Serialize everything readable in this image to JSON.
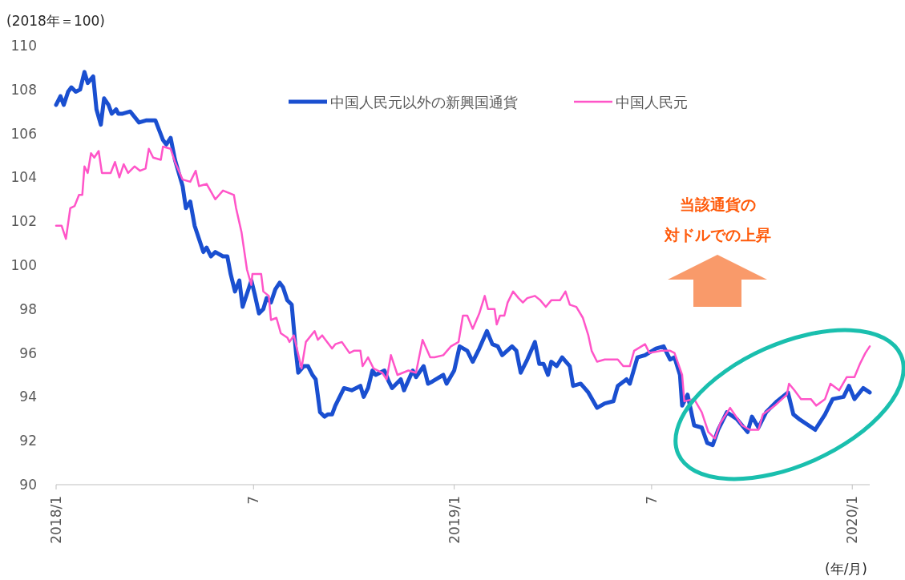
{
  "chart_data": {
    "type": "line",
    "ylabel": "(2018年＝100)",
    "xlabel": "(年/月)",
    "legend": "top",
    "xlim": [
      "2018-01-01",
      "2020-01-17"
    ],
    "ylim": [
      90,
      110
    ],
    "xticks": [
      {
        "value": "2018-01",
        "label": "2018/1"
      },
      {
        "value": "2018-07",
        "label": "7"
      },
      {
        "value": "2019-01",
        "label": "2019/1"
      },
      {
        "value": "2019-07",
        "label": "7"
      },
      {
        "value": "2020-01",
        "label": "2020/1"
      }
    ],
    "yticks": [
      90,
      92,
      94,
      96,
      98,
      100,
      102,
      104,
      106,
      108,
      110
    ],
    "annotations": [
      "当該通貨の",
      "対ドルでの上昇"
    ],
    "series": [
      {
        "name": "中国人民元以外の新興国通貨",
        "color": "#1a4fd0",
        "x": [
          "2018-01-01",
          "2018-01-05",
          "2018-01-08",
          "2018-01-12",
          "2018-01-15",
          "2018-01-19",
          "2018-01-23",
          "2018-01-27",
          "2018-01-30",
          "2018-02-04",
          "2018-02-07",
          "2018-02-11",
          "2018-02-14",
          "2018-02-18",
          "2018-02-21",
          "2018-02-25",
          "2018-02-27",
          "2018-03-03",
          "2018-03-10",
          "2018-03-18",
          "2018-03-25",
          "2018-04-02",
          "2018-04-09",
          "2018-04-12",
          "2018-04-16",
          "2018-04-20",
          "2018-04-27",
          "2018-04-30",
          "2018-05-04",
          "2018-05-08",
          "2018-05-16",
          "2018-05-19",
          "2018-05-23",
          "2018-05-27",
          "2018-06-03",
          "2018-06-07",
          "2018-06-10",
          "2018-06-14",
          "2018-06-18",
          "2018-06-21",
          "2018-06-29",
          "2018-07-02",
          "2018-07-06",
          "2018-07-10",
          "2018-07-13",
          "2018-07-17",
          "2018-07-21",
          "2018-07-25",
          "2018-07-28",
          "2018-08-01",
          "2018-08-05",
          "2018-08-09",
          "2018-08-11",
          "2018-08-16",
          "2018-08-20",
          "2018-08-24",
          "2018-08-27",
          "2018-08-31",
          "2018-09-04",
          "2018-09-07",
          "2018-09-11",
          "2018-09-14",
          "2018-09-22",
          "2018-09-29",
          "2018-10-03",
          "2018-10-07",
          "2018-10-10",
          "2018-10-14",
          "2018-10-18",
          "2018-10-21",
          "2018-10-25",
          "2018-10-29",
          "2018-11-02",
          "2018-11-05",
          "2018-11-13",
          "2018-11-16",
          "2018-11-24",
          "2018-11-27",
          "2018-12-04",
          "2018-12-08",
          "2018-12-12",
          "2018-12-22",
          "2018-12-25",
          "2019-01-01",
          "2019-01-06",
          "2019-01-13",
          "2019-01-18",
          "2019-01-24",
          "2019-01-31",
          "2019-02-05",
          "2019-02-10",
          "2019-02-14",
          "2019-02-23",
          "2019-02-27",
          "2019-03-03",
          "2019-03-09",
          "2019-03-16",
          "2019-03-20",
          "2019-03-24",
          "2019-03-28",
          "2019-03-31",
          "2019-04-05",
          "2019-04-10",
          "2019-04-17",
          "2019-04-20",
          "2019-04-27",
          "2019-05-04",
          "2019-05-12",
          "2019-05-19",
          "2019-05-27",
          "2019-05-31",
          "2019-06-08",
          "2019-06-11",
          "2019-06-18",
          "2019-06-25",
          "2019-07-05",
          "2019-07-12",
          "2019-07-18",
          "2019-07-22",
          "2019-07-27",
          "2019-07-29",
          "2019-08-03",
          "2019-08-09",
          "2019-08-16",
          "2019-08-21",
          "2019-08-26",
          "2019-08-31",
          "2019-09-08",
          "2019-09-17",
          "2019-09-27",
          "2019-10-01",
          "2019-10-07",
          "2019-10-14",
          "2019-10-24",
          "2019-11-03",
          "2019-11-08",
          "2019-11-13",
          "2019-11-28",
          "2019-12-07",
          "2019-12-14",
          "2019-12-24",
          "2019-12-29",
          "2020-01-03",
          "2020-01-11",
          "2020-01-17"
        ],
        "values": [
          107.3,
          107.7,
          107.3,
          107.9,
          108.1,
          107.9,
          108.0,
          108.8,
          108.3,
          108.6,
          107.1,
          106.4,
          107.6,
          107.3,
          106.9,
          107.1,
          106.9,
          106.9,
          107.0,
          106.5,
          106.6,
          106.6,
          105.7,
          105.5,
          105.8,
          104.8,
          103.6,
          102.6,
          102.9,
          101.8,
          100.6,
          100.8,
          100.4,
          100.6,
          100.4,
          100.4,
          99.6,
          98.8,
          99.3,
          98.1,
          99.3,
          98.7,
          97.8,
          98.0,
          98.5,
          98.3,
          98.9,
          99.2,
          99.0,
          98.4,
          98.2,
          96.0,
          95.1,
          95.4,
          95.4,
          95.0,
          94.8,
          93.3,
          93.1,
          93.2,
          93.2,
          93.6,
          94.4,
          94.3,
          94.4,
          94.5,
          94.0,
          94.4,
          95.2,
          95.0,
          95.1,
          95.2,
          94.7,
          94.4,
          94.8,
          94.3,
          95.2,
          94.9,
          95.4,
          94.6,
          94.7,
          95.0,
          94.6,
          95.2,
          96.3,
          96.1,
          95.6,
          96.2,
          97.0,
          96.4,
          96.3,
          95.9,
          96.3,
          96.1,
          95.1,
          95.7,
          96.5,
          95.5,
          95.5,
          95.0,
          95.6,
          95.4,
          95.8,
          95.4,
          94.5,
          94.6,
          94.2,
          93.5,
          93.7,
          93.8,
          94.5,
          94.8,
          94.6,
          95.8,
          95.9,
          96.2,
          96.3,
          95.7,
          95.8,
          95.0,
          93.6,
          94.1,
          92.7,
          92.6,
          91.9,
          91.8,
          92.5,
          93.3,
          93.0,
          92.4,
          93.1,
          92.6,
          93.3,
          93.8,
          94.2,
          93.2,
          93.0,
          92.5,
          93.2,
          93.9,
          94.0,
          94.5,
          93.9,
          94.4,
          94.2
        ]
      },
      {
        "name": "中国人民元",
        "color": "#ff55c8",
        "x": [
          "2018-01-01",
          "2018-01-06",
          "2018-01-10",
          "2018-01-14",
          "2018-01-18",
          "2018-01-22",
          "2018-01-25",
          "2018-01-27",
          "2018-01-30",
          "2018-02-02",
          "2018-02-05",
          "2018-02-09",
          "2018-02-12",
          "2018-02-20",
          "2018-02-24",
          "2018-02-28",
          "2018-03-04",
          "2018-03-08",
          "2018-03-14",
          "2018-03-19",
          "2018-03-24",
          "2018-03-27",
          "2018-03-31",
          "2018-04-07",
          "2018-04-09",
          "2018-04-16",
          "2018-04-20",
          "2018-04-27",
          "2018-05-04",
          "2018-05-09",
          "2018-05-12",
          "2018-05-19",
          "2018-05-27",
          "2018-06-03",
          "2018-06-13",
          "2018-06-15",
          "2018-06-20",
          "2018-06-25",
          "2018-06-29",
          "2018-06-30",
          "2018-07-08",
          "2018-07-10",
          "2018-07-15",
          "2018-07-17",
          "2018-07-22",
          "2018-07-26",
          "2018-08-01",
          "2018-08-03",
          "2018-08-07",
          "2018-08-14",
          "2018-08-18",
          "2018-08-26",
          "2018-08-29",
          "2018-09-02",
          "2018-09-05",
          "2018-09-11",
          "2018-09-14",
          "2018-09-20",
          "2018-09-27",
          "2018-10-01",
          "2018-10-07",
          "2018-10-09",
          "2018-10-14",
          "2018-10-19",
          "2018-10-27",
          "2018-10-31",
          "2018-11-04",
          "2018-11-10",
          "2018-11-20",
          "2018-11-27",
          "2018-12-03",
          "2018-12-10",
          "2018-12-14",
          "2018-12-22",
          "2018-12-29",
          "2019-01-05",
          "2019-01-09",
          "2019-01-13",
          "2019-01-18",
          "2019-01-24",
          "2019-01-29",
          "2019-02-01",
          "2019-02-07",
          "2019-02-09",
          "2019-02-12",
          "2019-02-16",
          "2019-02-19",
          "2019-02-24",
          "2019-03-01",
          "2019-03-05",
          "2019-03-09",
          "2019-03-16",
          "2019-03-21",
          "2019-03-26",
          "2019-03-31",
          "2019-04-08",
          "2019-04-13",
          "2019-04-17",
          "2019-04-23",
          "2019-04-29",
          "2019-05-04",
          "2019-05-07",
          "2019-05-12",
          "2019-05-19",
          "2019-05-31",
          "2019-06-05",
          "2019-06-11",
          "2019-06-15",
          "2019-06-25",
          "2019-06-29",
          "2019-07-10",
          "2019-07-18",
          "2019-07-22",
          "2019-07-29",
          "2019-07-31",
          "2019-08-09",
          "2019-08-16",
          "2019-08-22",
          "2019-08-28",
          "2019-09-02",
          "2019-09-11",
          "2019-09-22",
          "2019-09-29",
          "2019-10-07",
          "2019-10-11",
          "2019-10-22",
          "2019-11-02",
          "2019-11-04",
          "2019-11-09",
          "2019-11-15",
          "2019-11-24",
          "2019-11-29",
          "2019-12-07",
          "2019-12-12",
          "2019-12-20",
          "2019-12-27",
          "2020-01-03",
          "2020-01-08",
          "2020-01-13",
          "2020-01-17"
        ],
        "values": [
          101.8,
          101.8,
          101.2,
          102.6,
          102.7,
          103.2,
          103.2,
          104.5,
          104.2,
          105.1,
          104.9,
          105.2,
          104.2,
          104.2,
          104.7,
          104.0,
          104.6,
          104.2,
          104.5,
          104.3,
          104.4,
          105.3,
          104.9,
          104.8,
          105.4,
          105.3,
          104.7,
          103.9,
          103.8,
          104.3,
          103.6,
          103.7,
          103.0,
          103.4,
          103.2,
          102.6,
          101.5,
          99.8,
          99.1,
          99.6,
          99.6,
          98.8,
          98.6,
          97.5,
          97.6,
          96.9,
          96.7,
          96.5,
          96.8,
          95.3,
          96.5,
          97.0,
          96.6,
          96.8,
          96.6,
          96.2,
          96.4,
          96.5,
          96.0,
          96.1,
          96.1,
          95.4,
          95.8,
          95.3,
          95.1,
          94.8,
          95.9,
          95.0,
          95.2,
          95.1,
          96.6,
          95.8,
          95.8,
          95.9,
          96.3,
          96.5,
          97.7,
          97.7,
          97.1,
          97.8,
          98.6,
          98.0,
          98.0,
          97.3,
          97.7,
          97.7,
          98.3,
          98.8,
          98.5,
          98.3,
          98.5,
          98.6,
          98.4,
          98.1,
          98.4,
          98.4,
          98.8,
          98.2,
          98.1,
          97.6,
          96.8,
          96.1,
          95.6,
          95.7,
          95.7,
          95.4,
          95.4,
          96.1,
          96.4,
          96.0,
          96.1,
          96.1,
          96.0,
          95.0,
          93.8,
          93.9,
          93.3,
          92.4,
          92.1,
          92.8,
          93.5,
          92.7,
          92.5,
          92.5,
          93.2,
          93.6,
          94.1,
          94.6,
          94.3,
          93.9,
          93.9,
          93.6,
          93.9,
          94.6,
          94.3,
          94.9,
          94.9,
          95.5,
          96.0,
          96.3
        ]
      }
    ]
  }
}
